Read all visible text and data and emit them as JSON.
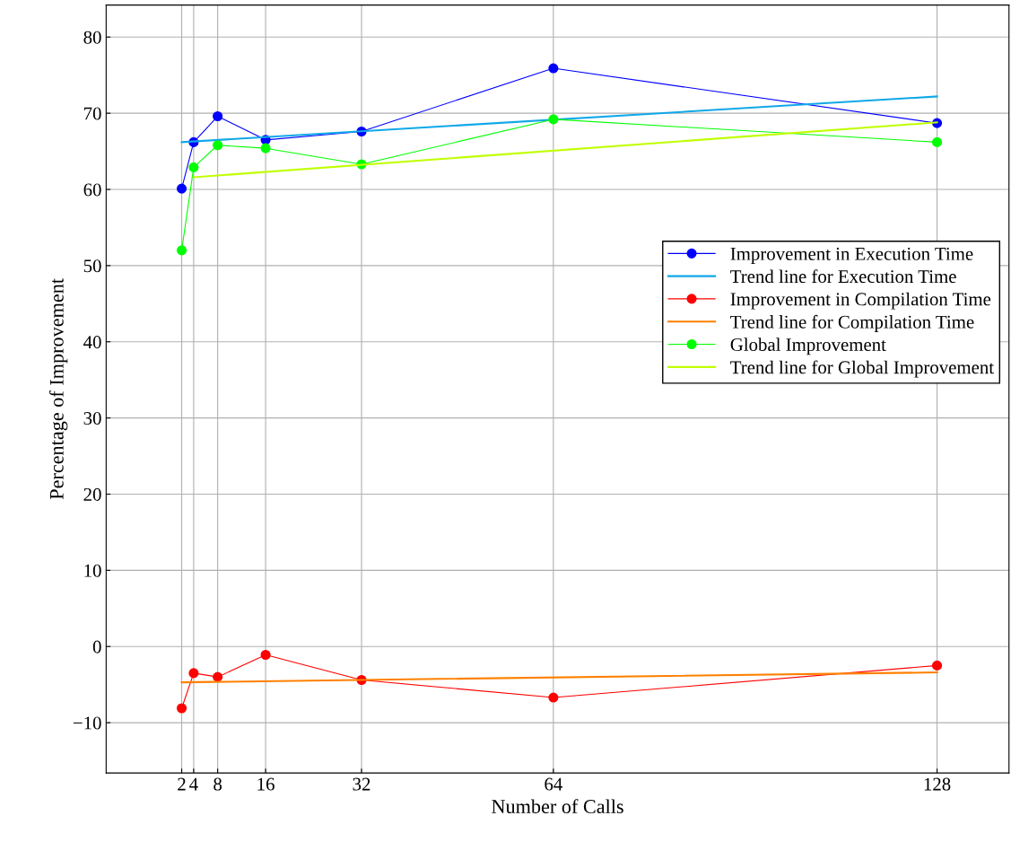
{
  "chart_data": {
    "type": "line",
    "xlabel": "Number of Calls",
    "ylabel": "Percentage of Improvement",
    "xlim": [
      -10.6,
      140
    ],
    "ylim": [
      -16.6,
      84.2
    ],
    "xticks": [
      2,
      4,
      8,
      16,
      32,
      64,
      128
    ],
    "yticks": [
      {
        "value": -10,
        "label": "−10"
      },
      0,
      10,
      20,
      30,
      40,
      50,
      60,
      70,
      80
    ],
    "grid": true,
    "legend": "right",
    "series": [
      {
        "name": "Improvement in Execution Time",
        "color": "#0000ff",
        "marker": "circle",
        "x": [
          2,
          4,
          8,
          16,
          32,
          64,
          128
        ],
        "values": [
          60.1,
          66.2,
          69.6,
          66.5,
          67.6,
          75.9,
          68.7
        ]
      },
      {
        "name": "Trend line for Execution Time",
        "color": "#10a8e8",
        "marker": "none",
        "x": [
          2,
          128
        ],
        "values": [
          66.2,
          72.2
        ]
      },
      {
        "name": "Improvement in Compilation Time",
        "color": "#ff0000",
        "marker": "circle",
        "x": [
          2,
          4,
          8,
          16,
          32,
          64,
          128
        ],
        "values": [
          -8.1,
          -3.5,
          -4.0,
          -1.1,
          -4.4,
          -6.7,
          -2.5
        ]
      },
      {
        "name": "Trend line for Compilation Time",
        "color": "#ff8000",
        "marker": "none",
        "x": [
          2,
          128
        ],
        "values": [
          -4.7,
          -3.4
        ]
      },
      {
        "name": "Global Improvement",
        "color": "#00ff00",
        "marker": "circle",
        "x": [
          2,
          4,
          8,
          16,
          32,
          64,
          128
        ],
        "values": [
          52.0,
          62.9,
          65.8,
          65.4,
          63.3,
          69.2,
          66.2
        ]
      },
      {
        "name": "Trend line for Global Improvement",
        "color": "#c0ff00",
        "marker": "none",
        "x": [
          4,
          128
        ],
        "values": [
          61.6,
          68.8
        ]
      }
    ]
  }
}
